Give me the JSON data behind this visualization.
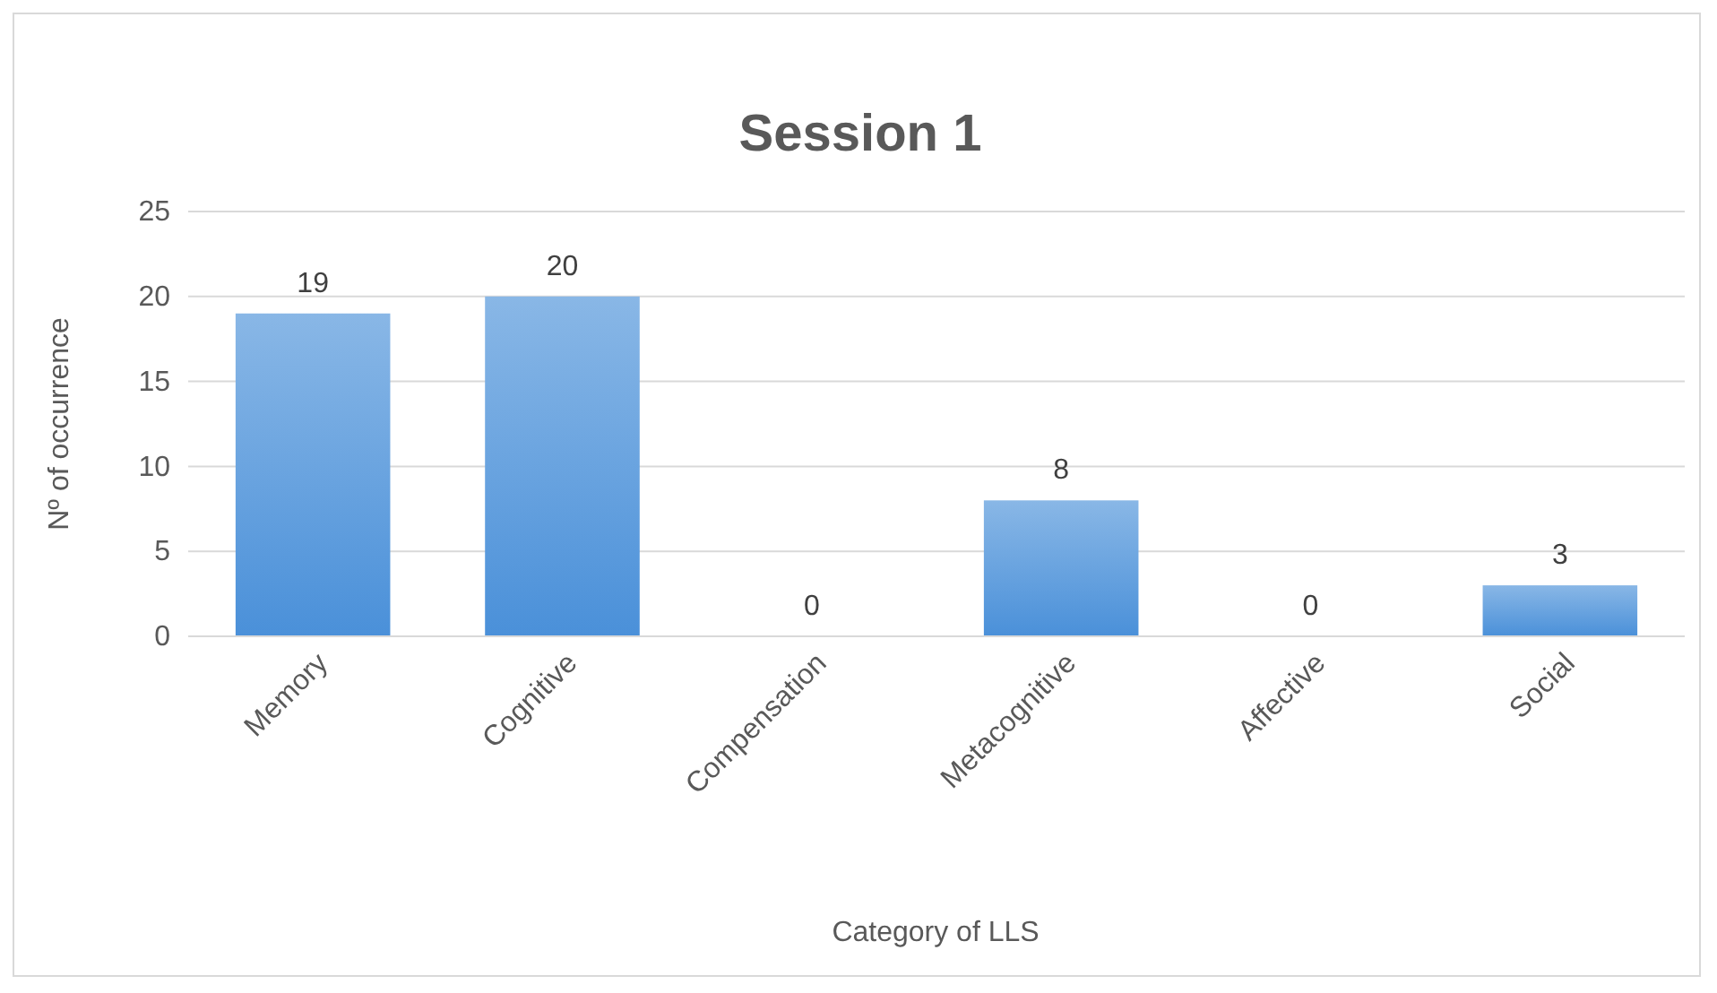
{
  "chart_data": {
    "type": "bar",
    "title": "Session 1",
    "xlabel": "Category of LLS",
    "ylabel": "Nº of occurrence",
    "categories": [
      "Memory",
      "Cognitive",
      "Compensation",
      "Metacognitive",
      "Affective",
      "Social"
    ],
    "values": [
      19,
      20,
      0,
      8,
      0,
      3
    ],
    "color": "#4a90d9",
    "ylim": [
      0,
      25
    ],
    "yticks": [
      0,
      5,
      10,
      15,
      20,
      25
    ],
    "grid": "y",
    "data_labels": true
  }
}
